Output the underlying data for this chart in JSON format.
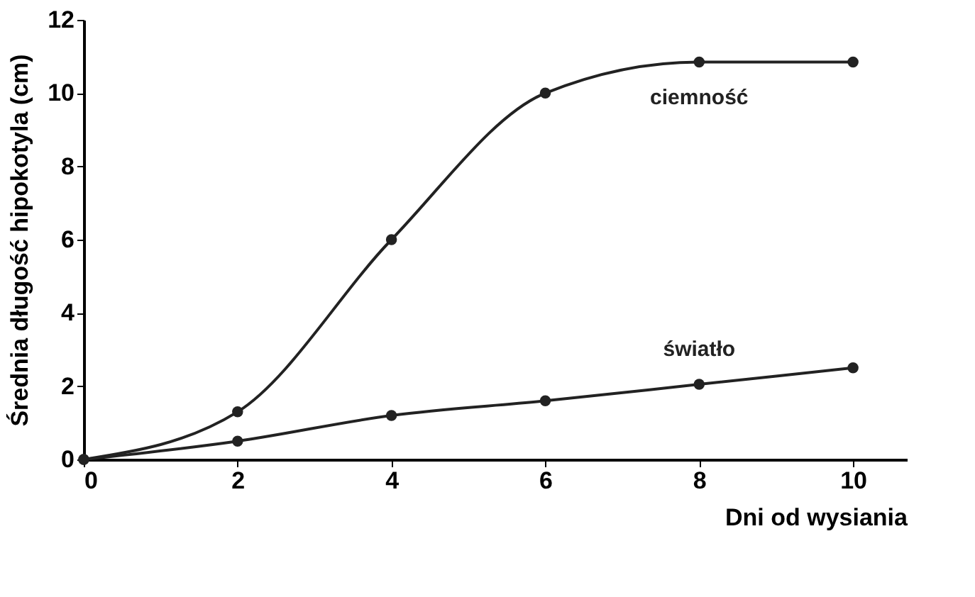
{
  "chart_data": {
    "type": "line",
    "xlabel": "Dni od wysiania",
    "ylabel": "Średnia długość hipokotyla (cm)",
    "x": [
      0,
      2,
      4,
      6,
      8,
      10
    ],
    "series": [
      {
        "name": "ciemność",
        "color": "#222222",
        "values": [
          0,
          1.3,
          6.0,
          10.0,
          10.85,
          10.85
        ]
      },
      {
        "name": "światło",
        "color": "#222222",
        "values": [
          0,
          0.5,
          1.2,
          1.6,
          2.05,
          2.5
        ]
      }
    ],
    "xlim": [
      0,
      10.7
    ],
    "xticks": [
      0,
      2,
      4,
      6,
      8,
      10
    ],
    "ylim": [
      0,
      12
    ],
    "yticks": [
      0,
      2,
      4,
      6,
      8,
      10,
      12
    ],
    "grid": false,
    "marker": "circle",
    "line_style": "solid"
  }
}
